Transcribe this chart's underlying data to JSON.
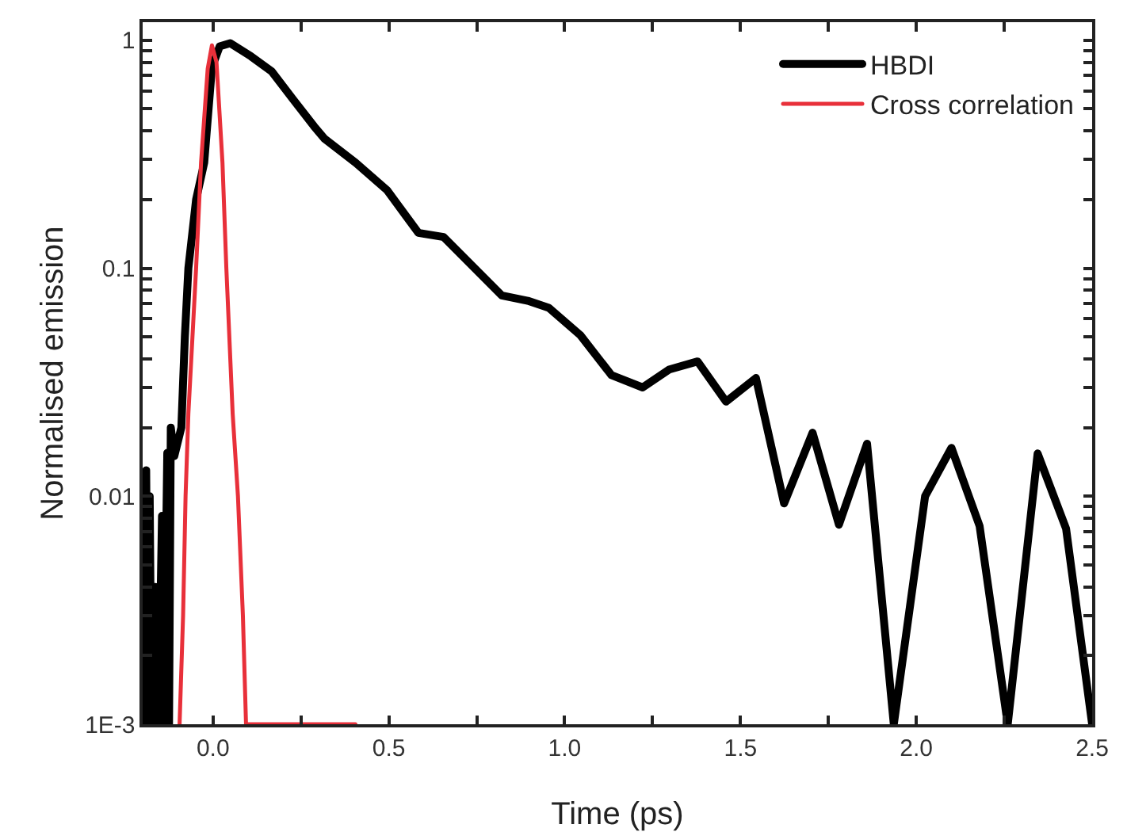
{
  "chart_data": {
    "type": "line",
    "xlabel": "Time (ps)",
    "ylabel": "Normalised emission",
    "log": "y",
    "grid": false,
    "legend": "top right",
    "marker": "none",
    "line_style": "solid",
    "xlim": [
      -0.2,
      2.5
    ],
    "ylim": [
      0.001,
      1.2
    ],
    "xticks": [
      {
        "value": 0,
        "label": "0.0"
      },
      {
        "value": 0.25,
        "label": null
      },
      {
        "value": 0.5,
        "label": "0.5"
      },
      {
        "value": 0.75,
        "label": null
      },
      {
        "value": 1,
        "label": "1.0"
      },
      {
        "value": 1.25,
        "label": null
      },
      {
        "value": 1.5,
        "label": "1.5"
      },
      {
        "value": 1.75,
        "label": null
      },
      {
        "value": 2,
        "label": "2.0"
      },
      {
        "value": 2.25,
        "label": null
      },
      {
        "value": 2.5,
        "label": "2.5"
      }
    ],
    "yticks": [
      {
        "value": 0.001,
        "label": "1E-3"
      },
      {
        "value": 0.002,
        "label": null
      },
      {
        "value": 0.003,
        "label": null
      },
      {
        "value": 0.004,
        "label": null
      },
      {
        "value": 0.005,
        "label": null
      },
      {
        "value": 0.006,
        "label": null
      },
      {
        "value": 0.007,
        "label": null
      },
      {
        "value": 0.008,
        "label": null
      },
      {
        "value": 0.009,
        "label": null
      },
      {
        "value": 0.01,
        "label": "0.01"
      },
      {
        "value": 0.02,
        "label": null
      },
      {
        "value": 0.03,
        "label": null
      },
      {
        "value": 0.04,
        "label": null
      },
      {
        "value": 0.05,
        "label": null
      },
      {
        "value": 0.06,
        "label": null
      },
      {
        "value": 0.07,
        "label": null
      },
      {
        "value": 0.08,
        "label": null
      },
      {
        "value": 0.09,
        "label": null
      },
      {
        "value": 0.1,
        "label": "0.1"
      },
      {
        "value": 0.2,
        "label": null
      },
      {
        "value": 0.3,
        "label": null
      },
      {
        "value": 0.4,
        "label": null
      },
      {
        "value": 0.5,
        "label": null
      },
      {
        "value": 0.6,
        "label": null
      },
      {
        "value": 0.7,
        "label": null
      },
      {
        "value": 0.8,
        "label": null
      },
      {
        "value": 0.9,
        "label": null
      },
      {
        "value": 1,
        "label": "1"
      }
    ],
    "series": [
      {
        "name": "HBDI",
        "color": "#000000",
        "x": [
          -0.2,
          -0.197,
          -0.19,
          -0.185,
          -0.18,
          -0.175,
          -0.165,
          -0.16,
          -0.155,
          -0.145,
          -0.14,
          -0.13,
          -0.125,
          -0.12,
          -0.11,
          -0.09,
          -0.08,
          -0.07,
          -0.048,
          -0.025,
          -0.003,
          0.019,
          0.049,
          0.108,
          0.167,
          0.228,
          0.287,
          0.317,
          0.406,
          0.495,
          0.584,
          0.656,
          0.821,
          0.895,
          0.955,
          1.044,
          1.133,
          1.222,
          1.298,
          1.378,
          1.459,
          1.544,
          1.624,
          1.705,
          1.78,
          1.86,
          1.936,
          2.025,
          2.1,
          2.18,
          2.26,
          2.345,
          2.426,
          2.5
        ],
        "values": [
          0.001,
          0.012,
          0.013,
          0.001,
          0.01,
          0.001,
          0.004,
          0.0028,
          0.001,
          0.0082,
          0.001,
          0.0155,
          0.001,
          0.02,
          0.015,
          0.02,
          0.05,
          0.1,
          0.2,
          0.29,
          0.76,
          0.94,
          0.97,
          0.85,
          0.73,
          0.55,
          0.42,
          0.37,
          0.29,
          0.22,
          0.143,
          0.137,
          0.076,
          0.072,
          0.067,
          0.051,
          0.034,
          0.03,
          0.036,
          0.039,
          0.026,
          0.033,
          0.0093,
          0.019,
          0.0075,
          0.017,
          0.001,
          0.01,
          0.0163,
          0.0074,
          0.001,
          0.0154,
          0.0072,
          0.001
        ]
      },
      {
        "name": "Cross correlation",
        "color": "#e8303a",
        "x": [
          -0.095,
          -0.085,
          -0.078,
          -0.07,
          -0.048,
          -0.034,
          -0.015,
          -0.003,
          0.01,
          0.027,
          0.038,
          0.056,
          0.071,
          0.085,
          0.094,
          0.405
        ],
        "values": [
          0.001,
          0.003,
          0.01,
          0.023,
          0.1,
          0.29,
          0.75,
          0.95,
          0.8,
          0.29,
          0.1,
          0.023,
          0.01,
          0.003,
          0.001,
          0.001
        ]
      }
    ]
  }
}
